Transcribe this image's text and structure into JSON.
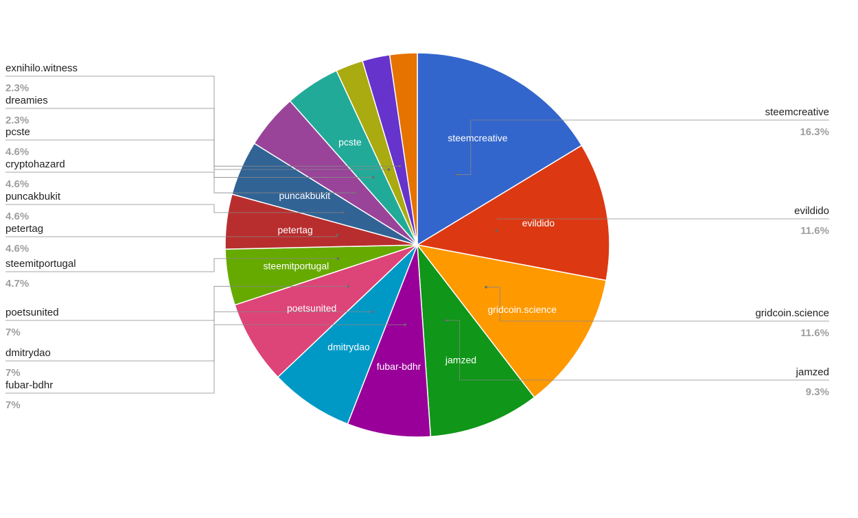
{
  "chart_data": {
    "type": "pie",
    "title": "",
    "slices": [
      {
        "name": "steemcreative",
        "value": 16.3,
        "label": "16.3%",
        "color": "#3366cc"
      },
      {
        "name": "evildido",
        "value": 11.6,
        "label": "11.6%",
        "color": "#dc3912"
      },
      {
        "name": "gridcoin.science",
        "value": 11.6,
        "label": "11.6%",
        "color": "#ff9900"
      },
      {
        "name": "jamzed",
        "value": 9.3,
        "label": "9.3%",
        "color": "#109618"
      },
      {
        "name": "fubar-bdhr",
        "value": 7,
        "label": "7%",
        "color": "#990099"
      },
      {
        "name": "dmitrydao",
        "value": 7,
        "label": "7%",
        "color": "#0099c6"
      },
      {
        "name": "poetsunited",
        "value": 7,
        "label": "7%",
        "color": "#dd4477"
      },
      {
        "name": "steemitportugal",
        "value": 4.7,
        "label": "4.7%",
        "color": "#66aa00"
      },
      {
        "name": "petertag",
        "value": 4.6,
        "label": "4.6%",
        "color": "#b82e2e"
      },
      {
        "name": "puncakbukit",
        "value": 4.6,
        "label": "4.6%",
        "color": "#316395"
      },
      {
        "name": "cryptohazard",
        "value": 4.6,
        "label": "4.6%",
        "color": "#994499"
      },
      {
        "name": "pcste",
        "value": 4.6,
        "label": "4.6%",
        "color": "#22aa99"
      },
      {
        "name": "dreamies",
        "value": 2.3,
        "label": "2.3%",
        "color": "#aaaa11"
      },
      {
        "name": "exnihilo.witness",
        "value": 2.3,
        "label": "2.3%",
        "color": "#6633cc"
      },
      {
        "name": "",
        "value": 2.3,
        "label": "",
        "color": "#e67300"
      }
    ],
    "inner_labels": [
      "steemcreative",
      "evildido",
      "gridcoin.science",
      "jamzed",
      "fubar-bdhr",
      "dmitrydao",
      "poetsunited",
      "steemitportugal",
      "petertag",
      "puncakbukit",
      "",
      "pcste",
      "",
      "",
      ""
    ],
    "legend_placement": "callouts left and right"
  }
}
